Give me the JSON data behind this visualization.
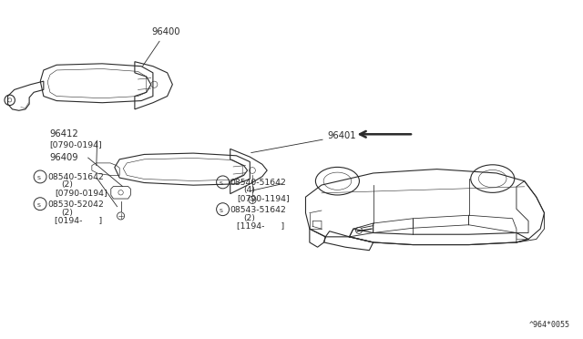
{
  "bg_color": "#ffffff",
  "line_color": "#2a2a2a",
  "text_color": "#2a2a2a",
  "diagram_label": "^964*0055",
  "label_96400": "96400",
  "label_96401": "96401",
  "label_96412": "96412\n[0790-0194]",
  "label_96409": "96409",
  "sl0": "08540-51642",
  "sl1": "(2)",
  "sl2": "[0790-0194]",
  "sl3": "08530-52042",
  "sl4": "(2)",
  "sl5": "[0194-      ]",
  "sr0": "08540-51642",
  "sr1": "(4)",
  "sr2": "[0790-1194]",
  "sr3": "08543-51642",
  "sr4": "(2)",
  "sr5": "[1194-      ]"
}
